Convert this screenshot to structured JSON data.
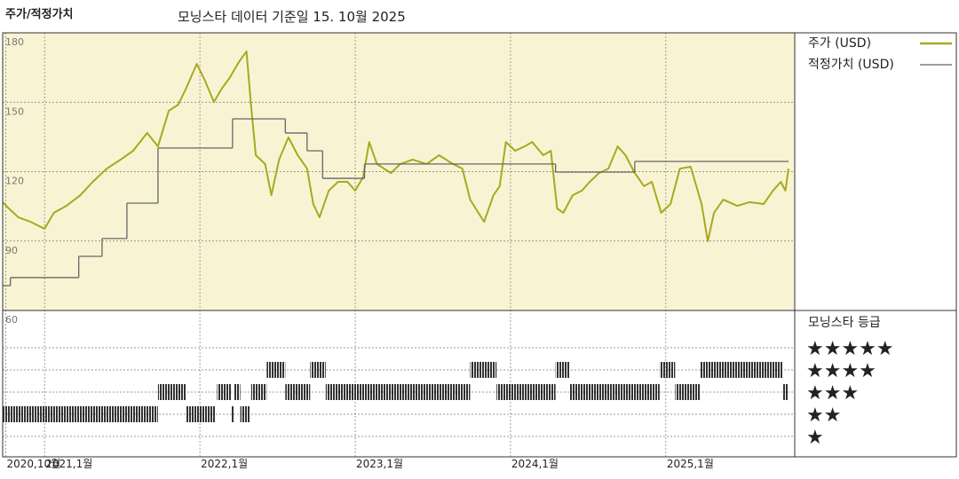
{
  "chart_data": [
    {
      "type": "line",
      "title": "주가/적정가치",
      "subtitle": "모닝스타 데이터 기준일 15. 10월 2025",
      "xlim": [
        2020.73,
        2025.83
      ],
      "xticks": [
        {
          "value": 2020.75,
          "label": "2020,10월"
        },
        {
          "value": 2021,
          "label": "2021,1월"
        },
        {
          "value": 2022,
          "label": "2022,1월"
        },
        {
          "value": 2023,
          "label": "2023,1월"
        },
        {
          "value": 2024,
          "label": "2024,1월"
        },
        {
          "value": 2025,
          "label": "2025,1월"
        }
      ],
      "ylim": [
        60,
        180
      ],
      "yticks": [
        60,
        90,
        120,
        150,
        180
      ],
      "grid": true,
      "series": [
        {
          "name": "주가 (USD)",
          "color": "#a9a820",
          "x": [
            2020.73,
            2020.77,
            2020.83,
            2020.91,
            2021.0,
            2021.06,
            2021.14,
            2021.23,
            2021.31,
            2021.4,
            2021.49,
            2021.57,
            2021.66,
            2021.73,
            2021.8,
            2021.86,
            2021.91,
            2021.98,
            2022.03,
            2022.09,
            2022.14,
            2022.19,
            2022.25,
            2022.3,
            2022.33,
            2022.36,
            2022.42,
            2022.46,
            2022.51,
            2022.57,
            2022.63,
            2022.69,
            2022.73,
            2022.77,
            2022.83,
            2022.89,
            2022.95,
            2023.0,
            2023.05,
            2023.09,
            2023.14,
            2023.23,
            2023.29,
            2023.37,
            2023.46,
            2023.54,
            2023.63,
            2023.69,
            2023.74,
            2023.83,
            2023.89,
            2023.93,
            2023.97,
            2024.03,
            2024.09,
            2024.14,
            2024.21,
            2024.26,
            2024.3,
            2024.34,
            2024.4,
            2024.46,
            2024.51,
            2024.57,
            2024.63,
            2024.69,
            2024.74,
            2024.8,
            2024.86,
            2024.91,
            2024.97,
            2025.03,
            2025.09,
            2025.16,
            2025.23,
            2025.27,
            2025.31,
            2025.37,
            2025.46,
            2025.54,
            2025.63,
            2025.69,
            2025.74,
            2025.77,
            2025.79
          ],
          "values": [
            106.8,
            104.1,
            100.3,
            98.3,
            95.3,
            102.2,
            105.2,
            109.8,
            115.6,
            121.3,
            125.2,
            129.0,
            136.7,
            130.9,
            146.3,
            148.9,
            155.8,
            166.6,
            159.7,
            150.1,
            155.8,
            160.4,
            167.3,
            172.0,
            148.2,
            127.1,
            123.3,
            109.8,
            125.2,
            134.8,
            127.1,
            121.3,
            106.0,
            100.3,
            111.8,
            115.6,
            115.6,
            111.8,
            117.5,
            132.8,
            123.3,
            119.4,
            123.3,
            125.2,
            123.3,
            127.1,
            123.3,
            121.3,
            107.9,
            98.3,
            109.8,
            113.7,
            132.8,
            129.0,
            130.9,
            132.8,
            127.1,
            129.0,
            104.1,
            102.2,
            109.8,
            111.8,
            115.6,
            119.4,
            121.3,
            130.9,
            127.1,
            119.4,
            113.7,
            115.6,
            102.2,
            106.0,
            121.3,
            122.1,
            106.0,
            89.9,
            102.2,
            107.9,
            105.2,
            106.8,
            106.0,
            111.8,
            115.6,
            111.8,
            121.3
          ]
        },
        {
          "name": "적정가치 (USD)",
          "color": "#666666",
          "step": "post",
          "x": [
            2020.73,
            2020.78,
            2021.22,
            2021.37,
            2021.53,
            2021.73,
            2022.21,
            2022.55,
            2022.69,
            2022.79,
            2023.06,
            2024.29,
            2024.8
          ],
          "values": [
            70.7,
            74.2,
            83.4,
            91.1,
            106.4,
            130.2,
            142.8,
            136.7,
            129.0,
            117.1,
            123.3,
            119.8,
            124.4
          ]
        }
      ]
    },
    {
      "type": "timeline",
      "title": "모닝스타 등급",
      "color": "#333333",
      "ylim": [
        0.08,
        6.68
      ],
      "yticks": [
        {
          "value": 5,
          "label": "★★★★★"
        },
        {
          "value": 4,
          "label": "★★★★"
        },
        {
          "value": 3,
          "label": "★★★"
        },
        {
          "value": 2,
          "label": "★★"
        },
        {
          "value": 1,
          "label": "★"
        }
      ],
      "periods": [
        {
          "start": 2020.73,
          "end": 2021.73,
          "value": 2
        },
        {
          "start": 2021.73,
          "end": 2021.91,
          "value": 3
        },
        {
          "start": 2021.91,
          "end": 2022.1,
          "value": 2
        },
        {
          "start": 2022.11,
          "end": 2022.2,
          "value": 3
        },
        {
          "start": 2022.2,
          "end": 2022.22,
          "value": 2
        },
        {
          "start": 2022.22,
          "end": 2022.26,
          "value": 3
        },
        {
          "start": 2022.26,
          "end": 2022.32,
          "value": 2
        },
        {
          "start": 2022.33,
          "end": 2022.43,
          "value": 3
        },
        {
          "start": 2022.43,
          "end": 2022.55,
          "value": 4
        },
        {
          "start": 2022.55,
          "end": 2022.71,
          "value": 3
        },
        {
          "start": 2022.71,
          "end": 2022.81,
          "value": 4
        },
        {
          "start": 2022.81,
          "end": 2023.74,
          "value": 3
        },
        {
          "start": 2023.74,
          "end": 2023.91,
          "value": 4
        },
        {
          "start": 2023.91,
          "end": 2024.29,
          "value": 3
        },
        {
          "start": 2024.29,
          "end": 2024.38,
          "value": 4
        },
        {
          "start": 2024.38,
          "end": 2024.96,
          "value": 3
        },
        {
          "start": 2024.96,
          "end": 2025.06,
          "value": 4
        },
        {
          "start": 2025.06,
          "end": 2025.22,
          "value": 3
        },
        {
          "start": 2025.22,
          "end": 2025.75,
          "value": 4
        },
        {
          "start": 2025.75,
          "end": 2025.79,
          "value": 3
        }
      ]
    }
  ]
}
